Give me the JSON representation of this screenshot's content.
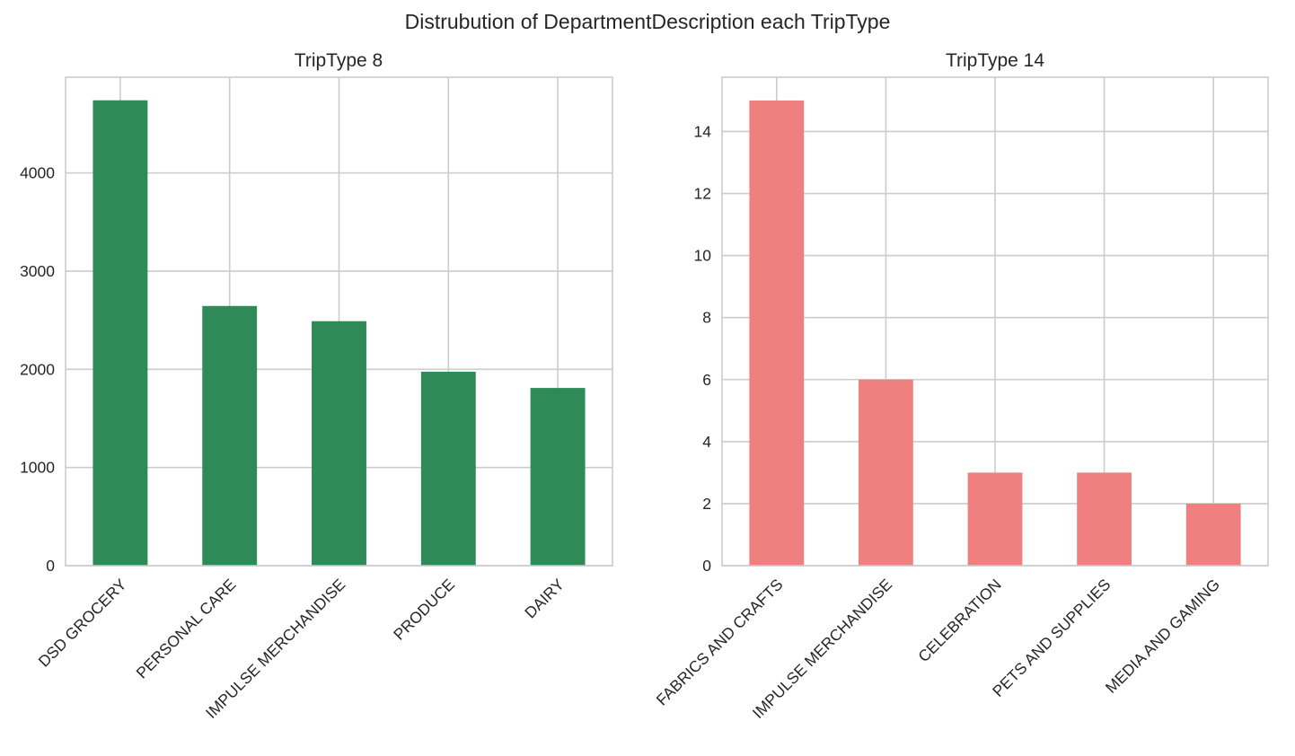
{
  "figure": {
    "title": "Distrubution of DepartmentDescription each TripType"
  },
  "chart_data": [
    {
      "type": "bar",
      "title": "TripType 8",
      "xlabel": "",
      "ylabel": "",
      "categories": [
        "DSD GROCERY",
        "PERSONAL CARE",
        "IMPULSE MERCHANDISE",
        "PRODUCE",
        "DAIRY"
      ],
      "values": [
        4740,
        2645,
        2490,
        1975,
        1810
      ],
      "ylim": [
        0,
        4975
      ],
      "yticks": [
        0,
        1000,
        2000,
        3000,
        4000
      ],
      "color": "#2e8b57",
      "grid": true
    },
    {
      "type": "bar",
      "title": "TripType 14",
      "xlabel": "",
      "ylabel": "",
      "categories": [
        "FABRICS AND CRAFTS",
        "IMPULSE MERCHANDISE",
        "CELEBRATION",
        "PETS AND SUPPLIES",
        "MEDIA AND GAMING"
      ],
      "values": [
        15,
        6,
        3,
        3,
        2
      ],
      "ylim": [
        0,
        15.75
      ],
      "yticks": [
        0,
        2,
        4,
        6,
        8,
        10,
        12,
        14
      ],
      "color": "#f08080",
      "grid": true
    }
  ]
}
